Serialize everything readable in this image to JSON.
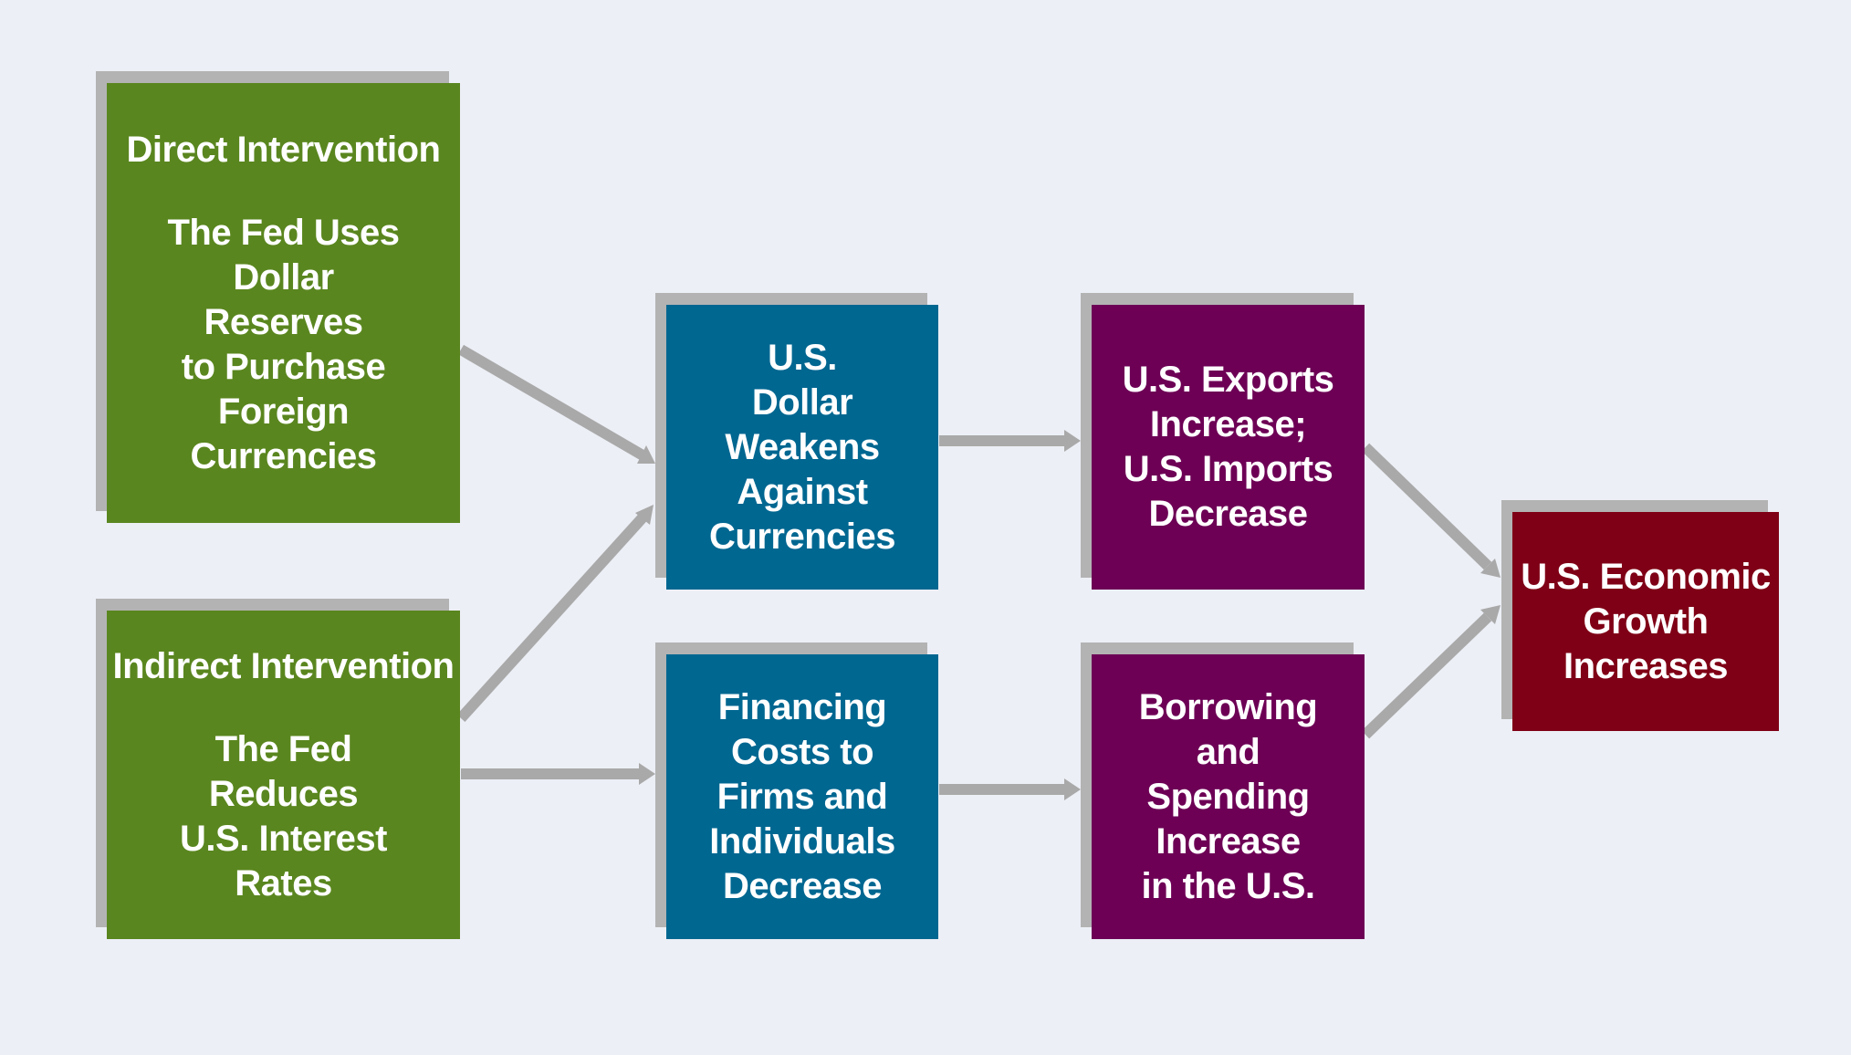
{
  "colors": {
    "background": "#eceff6",
    "shadow": "#b3b3b3",
    "arrow": "#a9a9a9",
    "green": "#5a861f",
    "blue": "#006791",
    "purple": "#6d0055",
    "red": "#7f0016",
    "text": "#ffffff"
  },
  "nodes": {
    "direct_intervention": {
      "title": "Direct Intervention",
      "lines": [
        "The Fed Uses",
        "Dollar",
        "Reserves",
        "to Purchase",
        "Foreign",
        "Currencies"
      ]
    },
    "indirect_intervention": {
      "title": "Indirect Intervention",
      "lines": [
        "The Fed",
        "Reduces",
        "U.S. Interest",
        "Rates"
      ]
    },
    "dollar_weakens": {
      "lines": [
        "U.S.",
        "Dollar",
        "Weakens",
        "Against",
        "Currencies"
      ]
    },
    "financing_costs": {
      "lines": [
        "Financing",
        "Costs to",
        "Firms and",
        "Individuals",
        "Decrease"
      ]
    },
    "exports_imports": {
      "lines": [
        "U.S. Exports",
        "Increase;",
        "U.S. Imports",
        "Decrease"
      ]
    },
    "borrowing_spending": {
      "lines": [
        "Borrowing",
        "and",
        "Spending",
        "Increase",
        "in the U.S."
      ]
    },
    "economic_growth": {
      "lines": [
        "U.S. Economic",
        "Growth",
        "Increases"
      ]
    }
  },
  "edges": [
    {
      "from": "direct_intervention",
      "to": "dollar_weakens"
    },
    {
      "from": "indirect_intervention",
      "to": "dollar_weakens"
    },
    {
      "from": "indirect_intervention",
      "to": "financing_costs"
    },
    {
      "from": "dollar_weakens",
      "to": "exports_imports"
    },
    {
      "from": "financing_costs",
      "to": "borrowing_spending"
    },
    {
      "from": "exports_imports",
      "to": "economic_growth"
    },
    {
      "from": "borrowing_spending",
      "to": "economic_growth"
    }
  ]
}
